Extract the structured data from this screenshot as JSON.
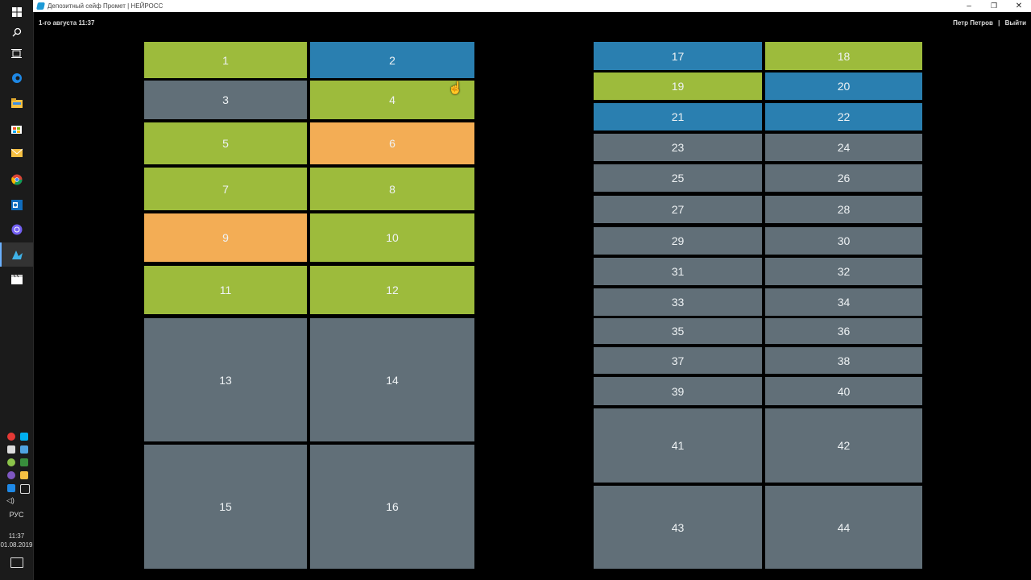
{
  "window": {
    "title": "Депозитный сейф Промет | НЕЙРОСС"
  },
  "header": {
    "date": "1-го августа 11:37",
    "user": "Петр Петров",
    "separator": "|",
    "logout": "Выйти"
  },
  "taskbar": {
    "language": "РУС",
    "time": "11:37",
    "date": "01.08.2019",
    "icons": [
      "windows-start-icon",
      "search-icon",
      "task-view-icon",
      "edge-icon",
      "file-explorer-icon",
      "store-icon",
      "mail-icon",
      "chrome-icon",
      "outlook-icon",
      "viber-icon",
      "neyross-icon",
      "video-editor-icon"
    ]
  },
  "colors": {
    "green": "#9dbb3c",
    "blue": "#2a7fb0",
    "gray": "#616f78",
    "orange": "#f3ad55"
  },
  "left_rack": {
    "cells": [
      {
        "label": "1",
        "status": "green"
      },
      {
        "label": "2",
        "status": "blue"
      },
      {
        "label": "3",
        "status": "gray"
      },
      {
        "label": "4",
        "status": "green"
      },
      {
        "label": "5",
        "status": "green"
      },
      {
        "label": "6",
        "status": "orange"
      },
      {
        "label": "7",
        "status": "green"
      },
      {
        "label": "8",
        "status": "green"
      },
      {
        "label": "9",
        "status": "orange"
      },
      {
        "label": "10",
        "status": "green"
      },
      {
        "label": "11",
        "status": "green"
      },
      {
        "label": "12",
        "status": "green"
      },
      {
        "label": "13",
        "status": "gray"
      },
      {
        "label": "14",
        "status": "gray"
      },
      {
        "label": "15",
        "status": "gray"
      },
      {
        "label": "16",
        "status": "gray"
      }
    ]
  },
  "right_rack": {
    "cells": [
      {
        "label": "17",
        "status": "blue"
      },
      {
        "label": "18",
        "status": "green"
      },
      {
        "label": "19",
        "status": "green"
      },
      {
        "label": "20",
        "status": "blue"
      },
      {
        "label": "21",
        "status": "blue"
      },
      {
        "label": "22",
        "status": "blue"
      },
      {
        "label": "23",
        "status": "gray"
      },
      {
        "label": "24",
        "status": "gray"
      },
      {
        "label": "25",
        "status": "gray"
      },
      {
        "label": "26",
        "status": "gray"
      },
      {
        "label": "27",
        "status": "gray"
      },
      {
        "label": "28",
        "status": "gray"
      },
      {
        "label": "29",
        "status": "gray"
      },
      {
        "label": "30",
        "status": "gray"
      },
      {
        "label": "31",
        "status": "gray"
      },
      {
        "label": "32",
        "status": "gray"
      },
      {
        "label": "33",
        "status": "gray"
      },
      {
        "label": "34",
        "status": "gray"
      },
      {
        "label": "35",
        "status": "gray"
      },
      {
        "label": "36",
        "status": "gray"
      },
      {
        "label": "37",
        "status": "gray"
      },
      {
        "label": "38",
        "status": "gray"
      },
      {
        "label": "39",
        "status": "gray"
      },
      {
        "label": "40",
        "status": "gray"
      },
      {
        "label": "41",
        "status": "gray"
      },
      {
        "label": "42",
        "status": "gray"
      },
      {
        "label": "43",
        "status": "gray"
      },
      {
        "label": "44",
        "status": "gray"
      }
    ]
  }
}
